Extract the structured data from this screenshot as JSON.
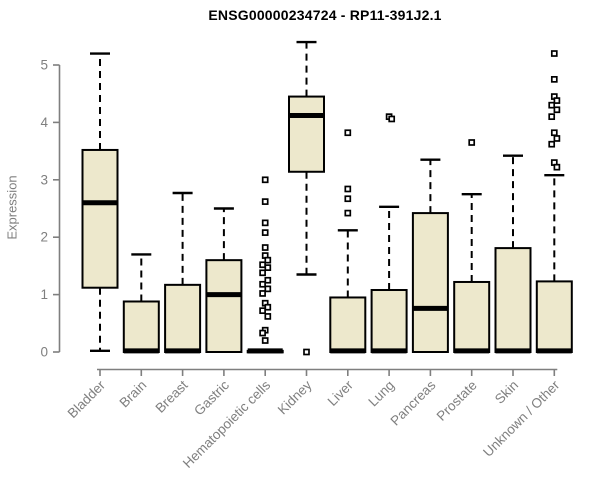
{
  "page": {
    "background": "#ffffff"
  },
  "chart_data": {
    "type": "boxplot",
    "title": "ENSG00000234724 - RP11-391J2.1",
    "ylabel": "Expression",
    "xlabel": "",
    "ylim": [
      0,
      5.45
    ],
    "yticks": [
      0,
      1,
      2,
      3,
      4,
      5
    ],
    "grid": false,
    "legend": "none",
    "categories": [
      "Bladder",
      "Brain",
      "Breast",
      "Gastric",
      "Hematopoietic cells",
      "Kidney",
      "Liver",
      "Lung",
      "Pancreas",
      "Prostate",
      "Skin",
      "Unknown / Other"
    ],
    "series": [
      {
        "category": "Bladder",
        "whisker_low": 0.02,
        "q1": 1.12,
        "median": 2.6,
        "q3": 3.52,
        "whisker_high": 5.2,
        "outliers": []
      },
      {
        "category": "Brain",
        "whisker_low": 0.0,
        "q1": 0.0,
        "median": 0.02,
        "q3": 0.88,
        "whisker_high": 1.7,
        "outliers": []
      },
      {
        "category": "Breast",
        "whisker_low": 0.0,
        "q1": 0.0,
        "median": 0.02,
        "q3": 1.17,
        "whisker_high": 2.77,
        "outliers": []
      },
      {
        "category": "Gastric",
        "whisker_low": 0.0,
        "q1": 0.0,
        "median": 1.0,
        "q3": 1.6,
        "whisker_high": 2.5,
        "outliers": []
      },
      {
        "category": "Hematopoietic cells",
        "whisker_low": 0.0,
        "q1": 0.0,
        "median": 0.02,
        "q3": 0.02,
        "whisker_high": 0.03,
        "outliers": [
          3.0,
          2.62,
          2.25,
          2.08,
          1.82,
          1.68,
          1.6,
          1.52,
          1.47,
          1.38,
          1.25,
          1.18,
          1.1,
          1.02,
          0.85,
          0.78,
          0.72,
          0.62,
          0.38,
          0.33,
          0.2
        ]
      },
      {
        "category": "Kidney",
        "whisker_low": 1.35,
        "q1": 3.14,
        "median": 4.12,
        "q3": 4.45,
        "whisker_high": 5.4,
        "outliers": [
          0.0
        ]
      },
      {
        "category": "Liver",
        "whisker_low": 0.0,
        "q1": 0.0,
        "median": 0.02,
        "q3": 0.95,
        "whisker_high": 2.12,
        "outliers": [
          3.82,
          2.84,
          2.67,
          2.42
        ]
      },
      {
        "category": "Lung",
        "whisker_low": 0.0,
        "q1": 0.0,
        "median": 0.02,
        "q3": 1.08,
        "whisker_high": 2.53,
        "outliers": [
          4.1,
          4.06
        ]
      },
      {
        "category": "Pancreas",
        "whisker_low": 0.0,
        "q1": 0.0,
        "median": 0.76,
        "q3": 2.42,
        "whisker_high": 3.35,
        "outliers": []
      },
      {
        "category": "Prostate",
        "whisker_low": 0.0,
        "q1": 0.0,
        "median": 0.02,
        "q3": 1.22,
        "whisker_high": 2.75,
        "outliers": [
          3.65
        ]
      },
      {
        "category": "Skin",
        "whisker_low": 0.0,
        "q1": 0.0,
        "median": 0.02,
        "q3": 1.81,
        "whisker_high": 3.42,
        "outliers": []
      },
      {
        "category": "Unknown / Other",
        "whisker_low": 0.0,
        "q1": 0.0,
        "median": 0.02,
        "q3": 1.23,
        "whisker_high": 3.08,
        "outliers": [
          5.2,
          4.75,
          4.45,
          4.38,
          4.3,
          4.22,
          4.1,
          3.82,
          3.72,
          3.62,
          3.3,
          3.22
        ]
      }
    ],
    "colors": {
      "box_fill": "#ede8cc",
      "box_stroke": "#000000",
      "median": "#000000",
      "whisker": "#000000",
      "outlier_stroke": "#000000",
      "outlier_fill": "#ffffff",
      "axis": "#7f7f7f",
      "tick_label": "#7f7f7f",
      "title": "#000000"
    }
  }
}
